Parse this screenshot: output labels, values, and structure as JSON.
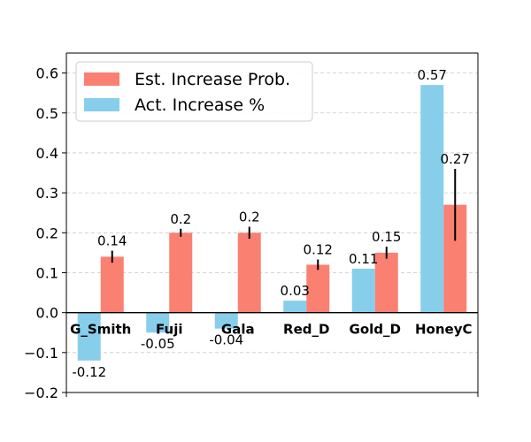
{
  "chart_data": {
    "type": "bar",
    "categories": [
      "G_Smith",
      "Fuji",
      "Gala",
      "Red_D",
      "Gold_D",
      "HoneyC"
    ],
    "series": [
      {
        "name": "Act. Increase %",
        "color": "#87CEEB",
        "values": [
          -0.12,
          -0.05,
          -0.04,
          0.03,
          0.11,
          0.57
        ],
        "labels": [
          "-0.12",
          "-0.05",
          "-0.04",
          "0.03",
          "0.11",
          "0.57"
        ]
      },
      {
        "name": "Est. Increase Prob.",
        "color": "#FA8072",
        "values": [
          0.14,
          0.2,
          0.2,
          0.12,
          0.15,
          0.27
        ],
        "labels": [
          "0.14",
          "0.2",
          "0.2",
          "0.12",
          "0.15",
          "0.27"
        ],
        "error": [
          0.015,
          0.01,
          0.015,
          0.013,
          0.015,
          0.09
        ]
      }
    ],
    "legend_order": [
      "Est. Increase Prob.",
      "Act. Increase %"
    ],
    "legend_position": "top-left",
    "ylim": [
      -0.2,
      0.65
    ],
    "yticks": [
      -0.2,
      -0.1,
      0.0,
      0.1,
      0.2,
      0.3,
      0.4,
      0.5,
      0.6
    ],
    "ytick_labels": [
      "−0.2",
      "−0.1",
      "0.0",
      "0.1",
      "0.2",
      "0.3",
      "0.4",
      "0.5",
      "0.6"
    ],
    "grid": "y-dashed",
    "title": "",
    "xlabel": "",
    "ylabel": ""
  }
}
